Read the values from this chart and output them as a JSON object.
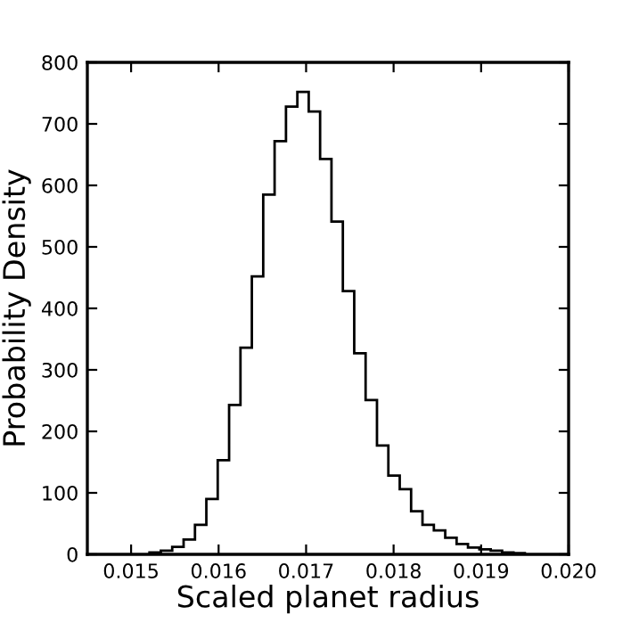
{
  "chart_data": {
    "type": "histogram",
    "xlabel": "Scaled planet radius",
    "ylabel": "Probability Density",
    "bins": [
      0.01521,
      0.01534,
      0.01547,
      0.0156,
      0.01573,
      0.01586,
      0.01599,
      0.01612,
      0.01625,
      0.01638,
      0.01651,
      0.01664,
      0.01677,
      0.0169,
      0.01703,
      0.01716,
      0.01729,
      0.01742,
      0.01755,
      0.01768,
      0.01781,
      0.01794,
      0.01807,
      0.0182,
      0.01833,
      0.01846,
      0.01859,
      0.01872,
      0.01885,
      0.01898,
      0.01911,
      0.01924,
      0.01937,
      0.0195
    ],
    "values": [
      3,
      6,
      12,
      24,
      48,
      90,
      153,
      243,
      336,
      452,
      585,
      672,
      728,
      752,
      720,
      643,
      541,
      428,
      327,
      251,
      177,
      128,
      106,
      70,
      48,
      39,
      27,
      17,
      11,
      8,
      6,
      3,
      2
    ],
    "color": "#000000",
    "xlim": [
      0.0145,
      0.02
    ],
    "xticks": [
      0.015,
      0.016,
      0.017,
      0.018,
      0.019,
      {
        "value": 0.02,
        "label": "0.020"
      }
    ],
    "ylim": [
      0,
      800
    ],
    "yticks": [
      0,
      100,
      200,
      300,
      400,
      500,
      600,
      700,
      800
    ],
    "grid": false
  }
}
